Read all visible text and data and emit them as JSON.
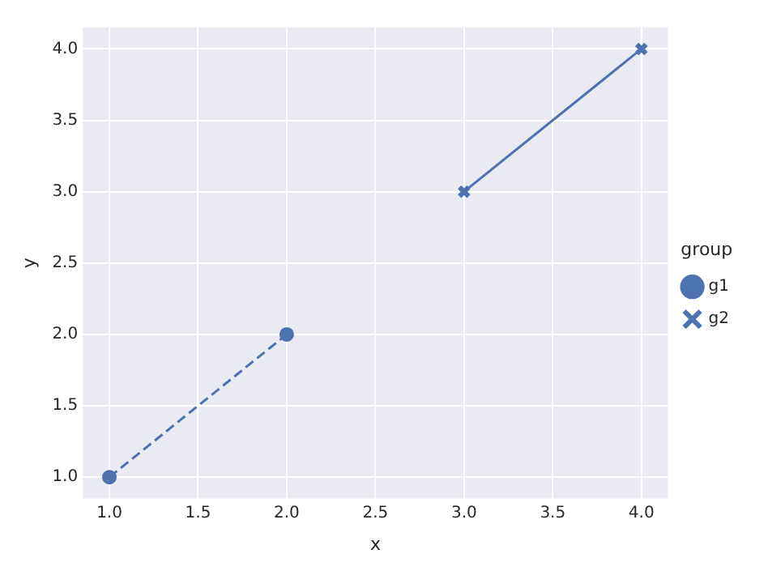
{
  "chart_data": {
    "type": "line",
    "xlabel": "x",
    "ylabel": "y",
    "legend_title": "group",
    "series": [
      {
        "name": "g1",
        "color": "#4c72b0",
        "x": [
          1.0,
          2.0
        ],
        "values": [
          1.0,
          2.0
        ],
        "marker": "circle",
        "line_style": "dashed"
      },
      {
        "name": "g2",
        "color": "#4c72b0",
        "x": [
          3.0,
          4.0
        ],
        "values": [
          3.0,
          4.0
        ],
        "marker": "cross",
        "line_style": "solid"
      }
    ],
    "xlim": [
      0.85,
      4.15
    ],
    "xticks": [
      {
        "value": 1,
        "label": "1.0"
      },
      {
        "value": 1.5,
        "label": "1.5"
      },
      {
        "value": 2,
        "label": "2.0"
      },
      {
        "value": 2.5,
        "label": "2.5"
      },
      {
        "value": 3,
        "label": "3.0"
      },
      {
        "value": 3.5,
        "label": "3.5"
      },
      {
        "value": 4,
        "label": "4.0"
      }
    ],
    "ylim": [
      0.85,
      4.15
    ],
    "yticks": [
      {
        "value": 1,
        "label": "1.0"
      },
      {
        "value": 1.5,
        "label": "1.5"
      },
      {
        "value": 2,
        "label": "2.0"
      },
      {
        "value": 2.5,
        "label": "2.5"
      },
      {
        "value": 3,
        "label": "3.0"
      },
      {
        "value": 3.5,
        "label": "3.5"
      },
      {
        "value": 4,
        "label": "4.0"
      }
    ],
    "grid": true,
    "legend": "right"
  }
}
